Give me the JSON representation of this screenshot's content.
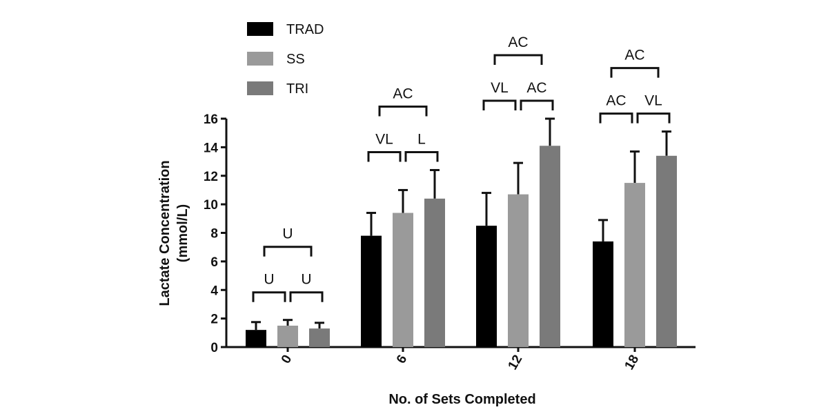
{
  "chart_data": {
    "type": "bar",
    "xlabel": "No. of Sets Completed",
    "ylabel_lines": [
      "Lactate Concentration",
      "(mmol/L)"
    ],
    "categories": [
      "0",
      "6",
      "12",
      "18"
    ],
    "ylim": [
      0,
      16
    ],
    "yticks": [
      0,
      2,
      4,
      6,
      8,
      10,
      12,
      14,
      16
    ],
    "grid": false,
    "legend_position": "top-left",
    "series": [
      {
        "name": "TRAD",
        "color": "#000000",
        "values": [
          1.2,
          7.8,
          8.5,
          7.4
        ],
        "error_upper": [
          1.75,
          9.4,
          10.8,
          8.9
        ]
      },
      {
        "name": "SS",
        "color": "#9a9a9a",
        "values": [
          1.5,
          9.4,
          10.7,
          11.5
        ],
        "error_upper": [
          1.9,
          11.0,
          12.9,
          13.7
        ]
      },
      {
        "name": "TRI",
        "color": "#7a7a7a",
        "values": [
          1.3,
          10.4,
          14.1,
          13.4
        ],
        "error_upper": [
          1.7,
          12.4,
          16.0,
          15.1
        ]
      }
    ],
    "annotations": [
      {
        "category": "0",
        "trad_vs_ss": "U",
        "ss_vs_tri": "U",
        "trad_vs_tri": "U"
      },
      {
        "category": "6",
        "trad_vs_ss": "VL",
        "ss_vs_tri": "L",
        "trad_vs_tri": "AC"
      },
      {
        "category": "12",
        "trad_vs_ss": "VL",
        "ss_vs_tri": "AC",
        "trad_vs_tri": "AC"
      },
      {
        "category": "18",
        "trad_vs_ss": "AC",
        "ss_vs_tri": "VL",
        "trad_vs_tri": "AC"
      }
    ]
  }
}
